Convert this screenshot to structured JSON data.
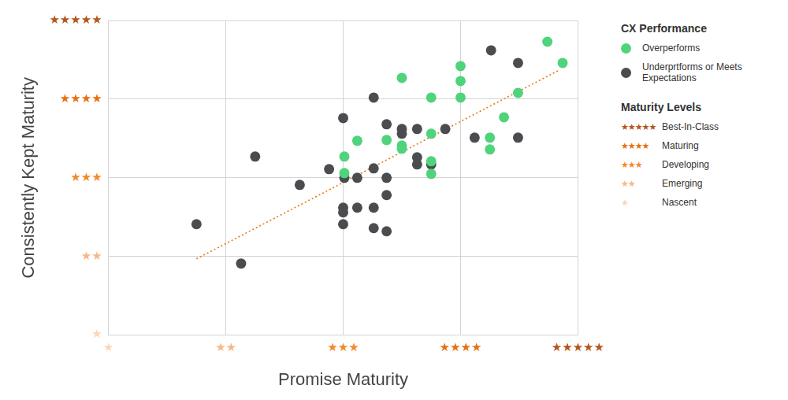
{
  "chart_data": {
    "type": "scatter",
    "x_label": "Promise Maturity",
    "y_label": "Consistently Kept Maturity",
    "xlim": [
      1,
      5
    ],
    "ylim": [
      1,
      5
    ],
    "xticks": [
      {
        "value": 1,
        "label": "★"
      },
      {
        "value": 2,
        "label": "★★"
      },
      {
        "value": 3,
        "label": "★★★"
      },
      {
        "value": 4,
        "label": "★★★★"
      },
      {
        "value": 5,
        "label": "★★★★★"
      }
    ],
    "yticks": [
      {
        "value": 1,
        "label": "★"
      },
      {
        "value": 2,
        "label": "★★"
      },
      {
        "value": 3,
        "label": "★★★"
      },
      {
        "value": 4,
        "label": "★★★★"
      },
      {
        "value": 5,
        "label": "★★★★★"
      }
    ],
    "grid": true,
    "legend": "right",
    "legend_title": "CX Performance",
    "series": [
      {
        "name": "Overperforms",
        "color": "#4fd37b",
        "marker": "circle",
        "x": [
          4.74,
          4.87,
          3.5,
          4.0,
          4.0,
          4.0,
          3.75,
          4.49,
          4.37,
          3.75,
          3.5,
          3.5,
          3.37,
          3.12,
          3.01,
          3.01,
          3.75,
          3.75,
          4.25,
          4.25
        ],
        "y": [
          4.73,
          4.46,
          4.27,
          4.42,
          4.23,
          4.02,
          4.02,
          4.08,
          3.77,
          3.56,
          3.41,
          3.37,
          3.48,
          3.47,
          3.27,
          3.06,
          3.21,
          3.05,
          3.51,
          3.36
        ]
      },
      {
        "name": "Underprtforms or Meets Expectations",
        "color": "#4a4c50",
        "marker": "circle",
        "x": [
          4.26,
          4.49,
          3.26,
          3.0,
          3.37,
          3.5,
          3.5,
          3.63,
          3.87,
          4.12,
          4.49,
          2.25,
          2.88,
          3.63,
          3.63,
          3.75,
          3.26,
          3.12,
          3.01,
          3.37,
          2.63,
          3.37,
          3.0,
          3.0,
          3.12,
          3.26,
          3.0,
          3.26,
          3.37,
          1.75,
          2.13
        ],
        "y": [
          4.62,
          4.46,
          4.02,
          3.76,
          3.68,
          3.62,
          3.56,
          3.62,
          3.62,
          3.51,
          3.51,
          3.27,
          3.11,
          3.26,
          3.17,
          3.17,
          3.12,
          3.0,
          3.0,
          3.0,
          2.91,
          2.78,
          2.62,
          2.56,
          2.62,
          2.62,
          2.41,
          2.36,
          2.32,
          2.41,
          1.91
        ]
      }
    ],
    "trend_line": {
      "x": [
        1.75,
        4.83
      ],
      "y": [
        1.97,
        4.36
      ],
      "color": "#e8780f",
      "line_style": "dotted"
    },
    "levels_title": "Maturity Levels",
    "levels": [
      {
        "value": 5,
        "name": "Best-In-Class",
        "color": "#b5561a"
      },
      {
        "value": 4,
        "name": "Maturing",
        "color": "#e8700f"
      },
      {
        "value": 3,
        "name": "Developing",
        "color": "#f28a2a"
      },
      {
        "value": 2,
        "name": "Emerging",
        "color": "#f6b88a"
      },
      {
        "value": 1,
        "name": "Nascent",
        "color": "#fbd6b8"
      }
    ]
  }
}
